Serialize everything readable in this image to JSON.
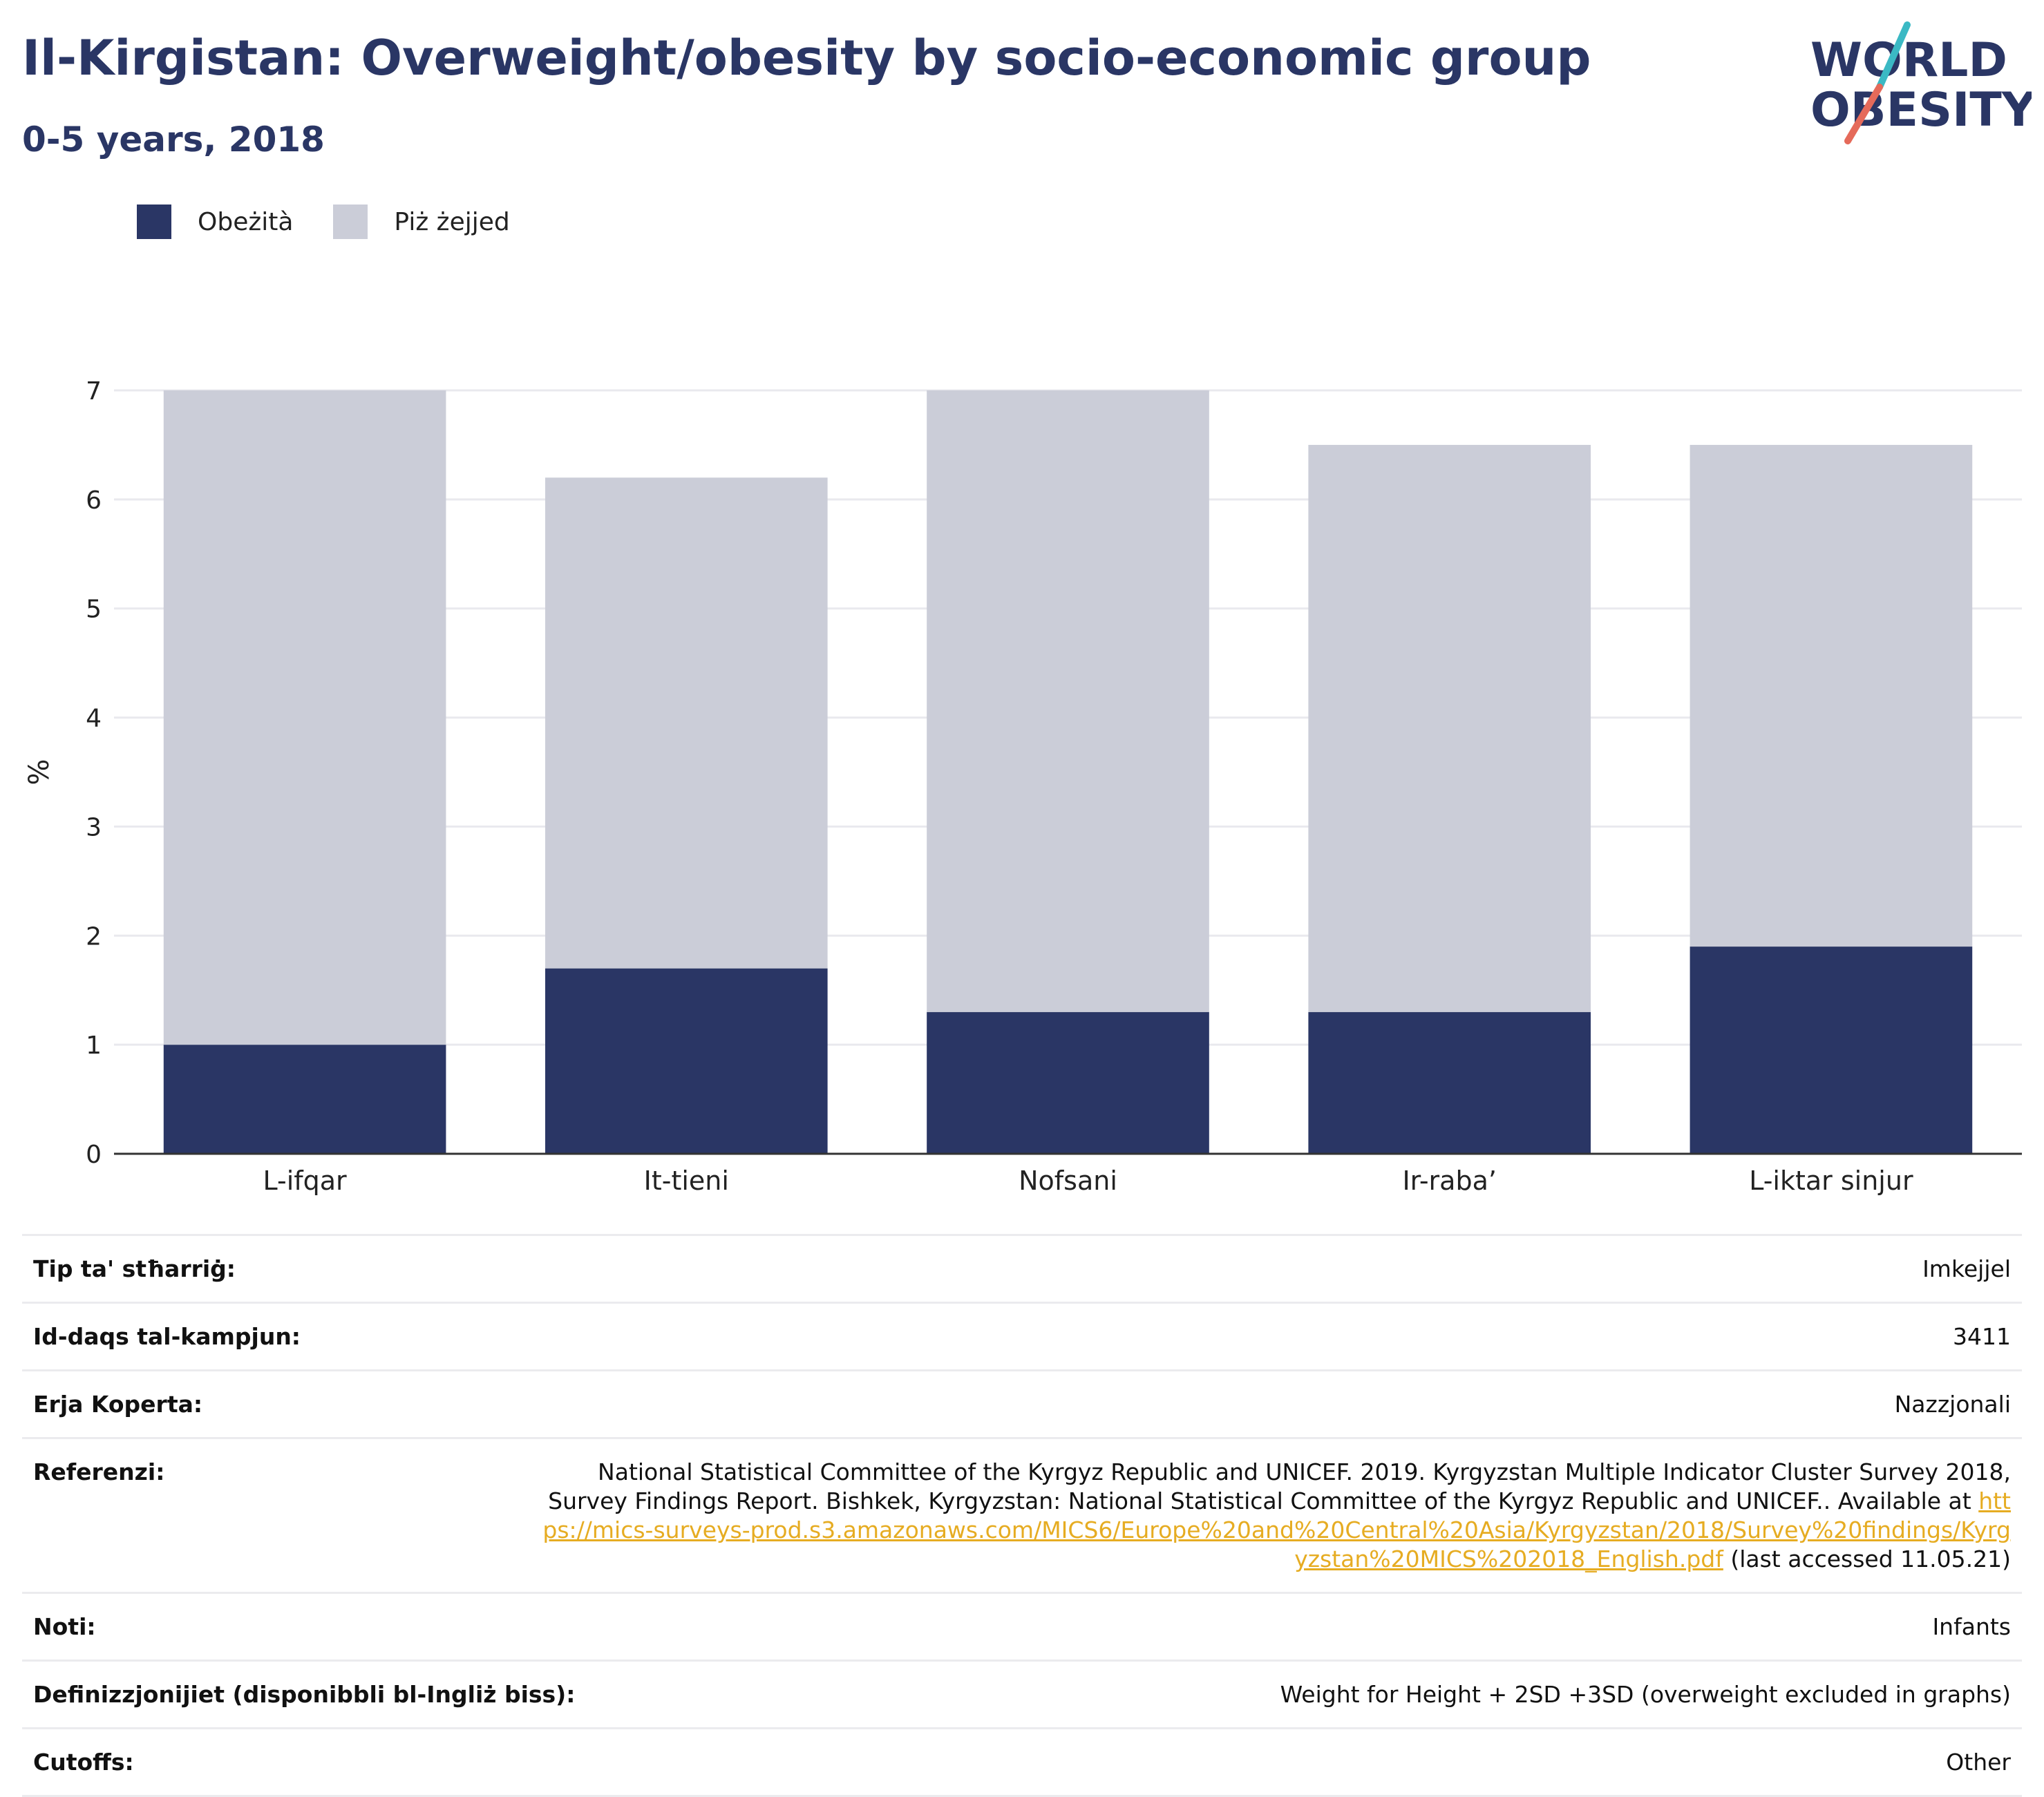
{
  "header": {
    "title": "Il-Kirgistan: Overweight/obesity by socio-economic group",
    "subtitle": "0-5 years, 2018"
  },
  "logo": {
    "line1": "WORLD",
    "line2": "OBESITY",
    "colors": {
      "text": "#2a3665",
      "slash_teal": "#3bb9c4",
      "slash_coral": "#e56a5a"
    }
  },
  "legend": [
    {
      "label": "Obeżità",
      "color": "#2a3665"
    },
    {
      "label": "Piż żejjed",
      "color": "#cbcdd8"
    }
  ],
  "chart_data": {
    "type": "bar",
    "stacked": true,
    "categories": [
      "L-ifqar",
      "It-tieni",
      "Nofsani",
      "Ir-raba’",
      "L-iktar sinjur"
    ],
    "series": [
      {
        "name": "Obeżità",
        "values": [
          1.0,
          1.7,
          1.3,
          1.3,
          1.9
        ],
        "color": "#2a3665"
      },
      {
        "name": "Piż żejjed",
        "values": [
          6.0,
          4.5,
          5.7,
          5.2,
          4.6
        ],
        "color": "#cbcdd8"
      }
    ],
    "ylabel": "%",
    "ylim": [
      0,
      7
    ],
    "yticks": [
      0,
      1,
      2,
      3,
      4,
      5,
      6,
      7
    ],
    "grid": true,
    "legend_position": "top-left"
  },
  "info": {
    "rows": [
      {
        "label": "Tip ta' stħarriġ:",
        "value": "Imkejjel"
      },
      {
        "label": "Id-daqs tal-kampjun:",
        "value": "3411"
      },
      {
        "label": "Erja Koperta:",
        "value": "Nazzjonali"
      }
    ],
    "reference": {
      "label": "Referenzi:",
      "text": "National Statistical Committee of the Kyrgyz Republic and UNICEF. 2019. Kyrgyzstan Multiple Indicator Cluster Survey 2018, Survey Findings Report. Bishkek, Kyrgyzstan: National Statistical Committee of the Kyrgyz Republic and UNICEF.. Available at ",
      "link": "https://mics-surveys-prod.s3.amazonaws.com/MICS6/Europe%20and%20Central%20Asia/Kyrgyzstan/2018/Survey%20findings/Kyrgyzstan%20MICS%202018_English.pdf",
      "suffix": " (last accessed 11.05.21)"
    },
    "rows2": [
      {
        "label": "Noti:",
        "value": "Infants"
      },
      {
        "label": "Definizzjonijiet (disponibbli bl-Ingliż biss):",
        "value": "Weight for Height + 2SD +3SD (overweight excluded in graphs)"
      },
      {
        "label": "Cutoffs:",
        "value": "Other"
      }
    ]
  }
}
